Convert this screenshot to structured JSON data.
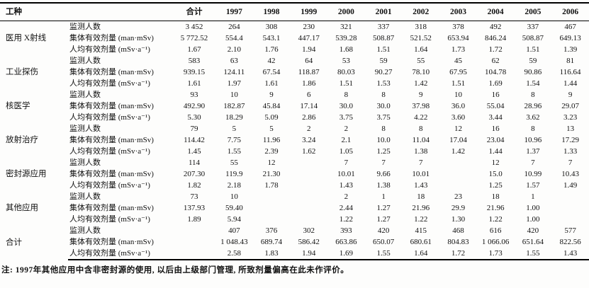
{
  "page": {
    "footnote": "注: 1997年其他应用中含非密封源的使用, 以后由上级部门管理, 所致剂量偏高在此未作评价。"
  },
  "table": {
    "corner_header": "工种",
    "total_header": "合计",
    "years": [
      "1997",
      "1998",
      "1999",
      "2000",
      "2001",
      "2002",
      "2003",
      "2004",
      "2005",
      "2006"
    ],
    "metric_labels": {
      "monitored": "监测人数",
      "collective": "集体有效剂量 (man·mSv)",
      "per_capita": "人均有效剂量 (mSv·a⁻¹)"
    },
    "groups": [
      {
        "name": "医用 X射线",
        "rows": [
          {
            "label": "监测人数",
            "values": [
              "3 452",
              "264",
              "308",
              "230",
              "321",
              "337",
              "318",
              "378",
              "492",
              "337",
              "467"
            ]
          },
          {
            "label": "集体有效剂量 (man·mSv)",
            "values": [
              "5 772.52",
              "554.4",
              "543.1",
              "447.17",
              "539.28",
              "508.87",
              "521.52",
              "653.94",
              "846.24",
              "508.87",
              "649.13"
            ]
          },
          {
            "label": "人均有效剂量 (mSv·a⁻¹)",
            "values": [
              "1.67",
              "2.10",
              "1.76",
              "1.94",
              "1.68",
              "1.51",
              "1.64",
              "1.73",
              "1.72",
              "1.51",
              "1.39"
            ]
          }
        ]
      },
      {
        "name": "工业探伤",
        "rows": [
          {
            "label": "监测人数",
            "values": [
              "583",
              "63",
              "42",
              "64",
              "53",
              "59",
              "55",
              "45",
              "62",
              "59",
              "81"
            ]
          },
          {
            "label": "集体有效剂量 (man·mSv)",
            "values": [
              "939.15",
              "124.11",
              "67.54",
              "118.87",
              "80.03",
              "90.27",
              "78.10",
              "67.95",
              "104.78",
              "90.86",
              "116.64"
            ]
          },
          {
            "label": "人均有效剂量 (mSv·a⁻¹)",
            "values": [
              "1.61",
              "1.97",
              "1.61",
              "1.86",
              "1.51",
              "1.53",
              "1.42",
              "1.51",
              "1.69",
              "1.54",
              "1.44"
            ]
          }
        ]
      },
      {
        "name": "核医学",
        "rows": [
          {
            "label": "监测人数",
            "values": [
              "93",
              "10",
              "9",
              "6",
              "8",
              "8",
              "9",
              "10",
              "16",
              "8",
              "9"
            ]
          },
          {
            "label": "集体有效剂量 (man·mSv)",
            "values": [
              "492.90",
              "182.87",
              "45.84",
              "17.14",
              "30.0",
              "30.0",
              "37.98",
              "36.0",
              "55.04",
              "28.96",
              "29.07"
            ]
          },
          {
            "label": "人均有效剂量 (mSv·a⁻¹)",
            "values": [
              "5.30",
              "18.29",
              "5.09",
              "2.86",
              "3.75",
              "3.75",
              "4.22",
              "3.60",
              "3.44",
              "3.62",
              "3.23"
            ]
          }
        ]
      },
      {
        "name": "放射治疗",
        "rows": [
          {
            "label": "监测人数",
            "values": [
              "79",
              "5",
              "5",
              "2",
              "2",
              "8",
              "8",
              "12",
              "16",
              "8",
              "13"
            ]
          },
          {
            "label": "集体有效剂量 (man·mSv)",
            "values": [
              "114.42",
              "7.75",
              "11.96",
              "3.24",
              "2.1",
              "10.0",
              "11.04",
              "17.04",
              "23.04",
              "10.96",
              "17.29"
            ]
          },
          {
            "label": "人均有效剂量 (mSv·a⁻¹)",
            "values": [
              "1.45",
              "1.55",
              "2.39",
              "1.62",
              "1.05",
              "1.25",
              "1.38",
              "1.42",
              "1.44",
              "1.37",
              "1.33"
            ]
          }
        ]
      },
      {
        "name": "密封源应用",
        "rows": [
          {
            "label": "监测人数",
            "values": [
              "114",
              "55",
              "12",
              "",
              "7",
              "7",
              "7",
              "",
              "12",
              "7",
              "7"
            ]
          },
          {
            "label": "集体有效剂量 (man·mSv)",
            "values": [
              "207.30",
              "119.9",
              "21.30",
              "",
              "10.01",
              "9.66",
              "10.01",
              "",
              "15.0",
              "10.99",
              "10.43"
            ]
          },
          {
            "label": "人均有效剂量 (mSv·a⁻¹)",
            "values": [
              "1.82",
              "2.18",
              "1.78",
              "",
              "1.43",
              "1.38",
              "1.43",
              "",
              "1.25",
              "1.57",
              "1.49"
            ]
          }
        ]
      },
      {
        "name": "其他应用",
        "rows": [
          {
            "label": "监测人数",
            "values": [
              "73",
              "10",
              "",
              "",
              "2",
              "1",
              "18",
              "23",
              "18",
              "1",
              ""
            ]
          },
          {
            "label": "集体有效剂量 (man·mSv)",
            "values": [
              "137.93",
              "59.40",
              "",
              "",
              "2.44",
              "1.27",
              "21.96",
              "29.9",
              "21.96",
              "1.00",
              ""
            ]
          },
          {
            "label": "人均有效剂量 (mSv·a⁻¹)",
            "values": [
              "1.89",
              "5.94",
              "",
              "",
              "1.22",
              "1.27",
              "1.22",
              "1.30",
              "1.22",
              "1.00",
              ""
            ]
          }
        ]
      },
      {
        "name": "合计",
        "rows": [
          {
            "label": "监测人数",
            "values": [
              "",
              "407",
              "376",
              "302",
              "393",
              "420",
              "415",
              "468",
              "616",
              "420",
              "577"
            ]
          },
          {
            "label": "集体有效剂量 (man·mSv)",
            "values": [
              "",
              "1 048.43",
              "689.74",
              "586.42",
              "663.86",
              "650.07",
              "680.61",
              "804.83",
              "1 066.06",
              "651.64",
              "822.56"
            ]
          },
          {
            "label": "人均有效剂量 (mSv·a⁻¹)",
            "values": [
              "",
              "2.58",
              "1.83",
              "1.94",
              "1.69",
              "1.55",
              "1.64",
              "1.72",
              "1.73",
              "1.55",
              "1.43"
            ]
          }
        ]
      }
    ]
  }
}
